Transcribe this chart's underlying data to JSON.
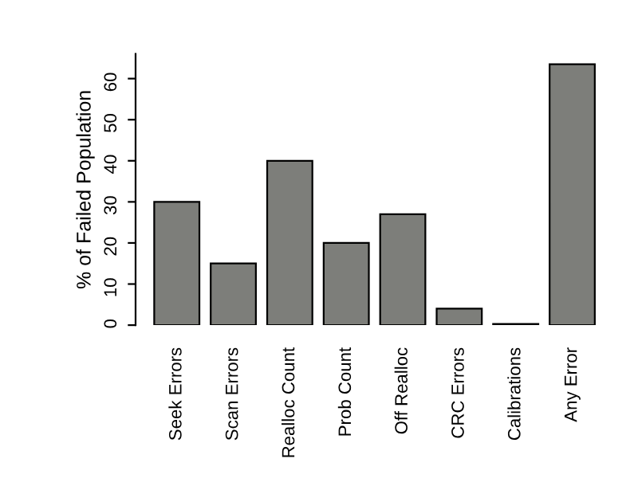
{
  "chart_data": {
    "type": "bar",
    "ylabel": "% of Failed Population",
    "categories": [
      "Seek Errors",
      "Scan Errors",
      "Realloc Count",
      "Prob Count",
      "Off Realloc",
      "CRC Errors",
      "Calibrations",
      "Any Error"
    ],
    "values": [
      30,
      15,
      40,
      20,
      27,
      4,
      0.3,
      63.5
    ],
    "color": "#7d7e7a",
    "ylim": [
      0,
      66
    ],
    "yticks": [
      0,
      10,
      20,
      30,
      40,
      50,
      60
    ],
    "grid": false
  }
}
